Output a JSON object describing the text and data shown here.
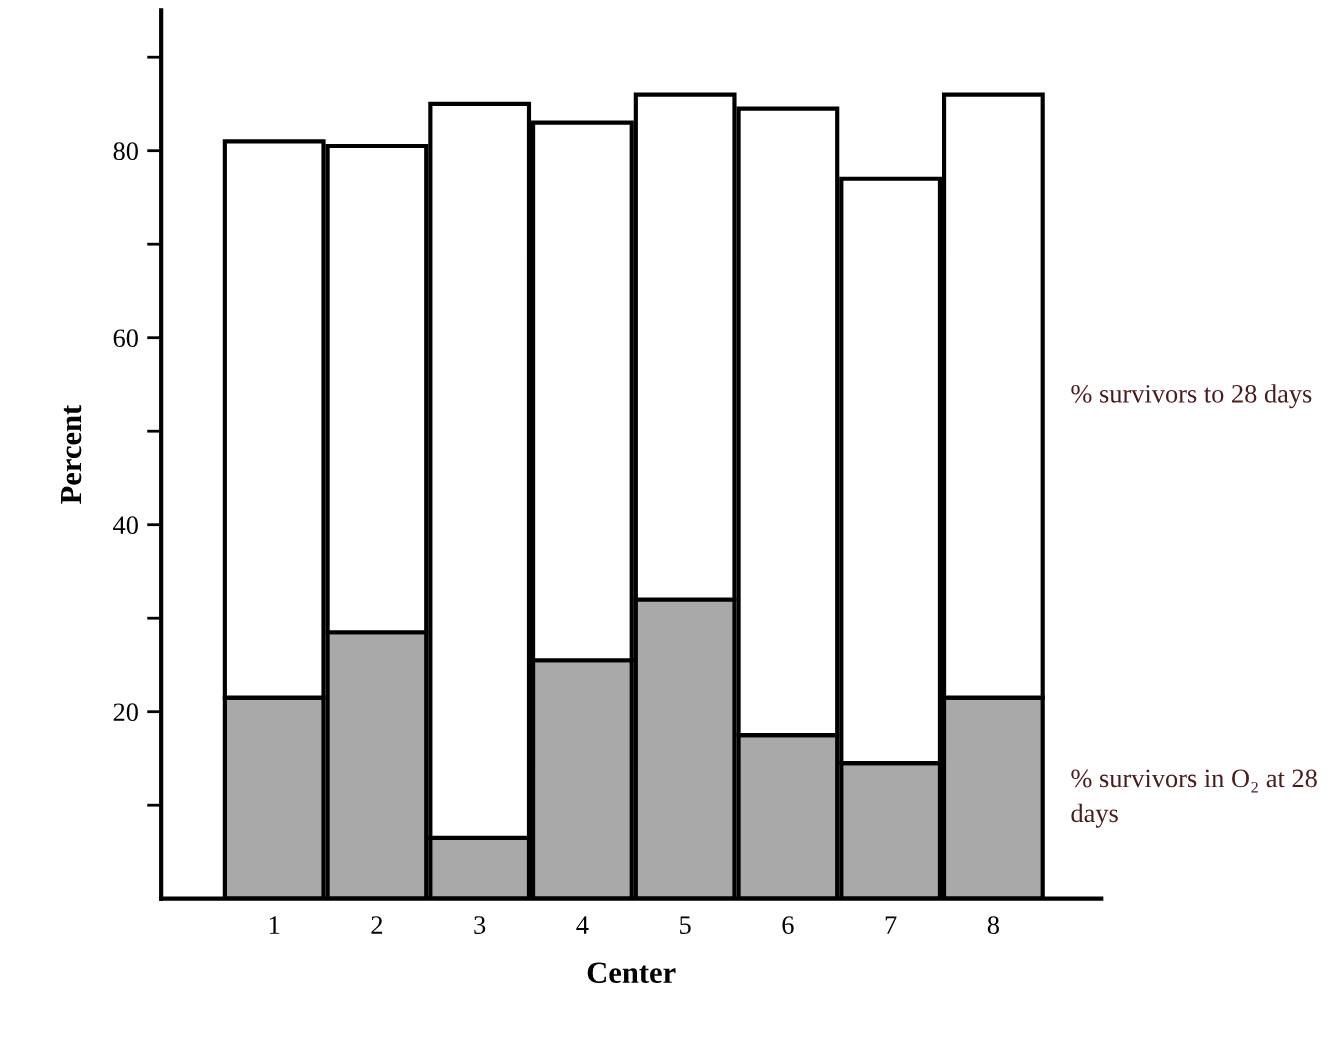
{
  "chart_data": {
    "type": "bar",
    "xlabel": "Center",
    "ylabel": "Percent",
    "categories": [
      "1",
      "2",
      "3",
      "4",
      "5",
      "6",
      "7",
      "8"
    ],
    "stacked": true,
    "series": [
      {
        "name": "% survivors in O₂ at 28 days",
        "color": "#a9a9a9",
        "values": [
          21.5,
          28.5,
          6.5,
          25.5,
          32,
          17.5,
          14.5,
          21.5
        ]
      },
      {
        "name": "% survivors to 28 days",
        "color": "#ffffff",
        "values": [
          59.5,
          52,
          78.5,
          57.5,
          54,
          67,
          62.5,
          64.5
        ]
      }
    ],
    "ylim": [
      0,
      95
    ],
    "yticks": [
      {
        "value": 10,
        "label": null
      },
      20,
      {
        "value": 30,
        "label": null
      },
      40,
      {
        "value": 50,
        "label": null
      },
      60,
      {
        "value": 70,
        "label": null
      },
      80,
      {
        "value": 90,
        "label": null
      }
    ],
    "grid": false
  }
}
